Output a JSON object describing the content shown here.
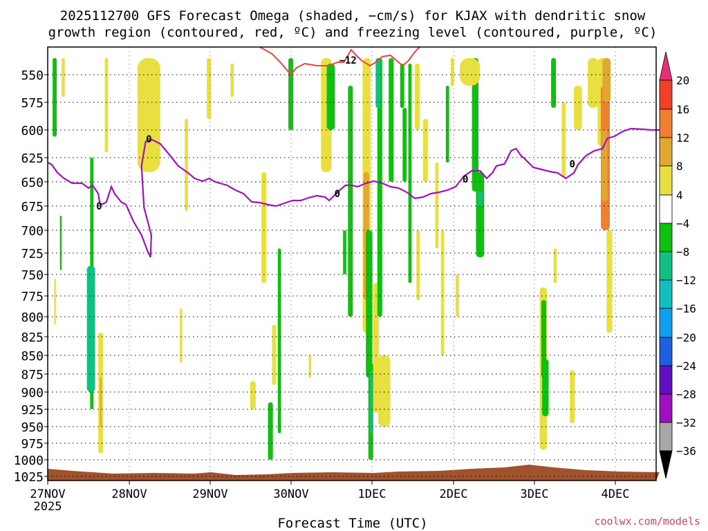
{
  "chart_data": {
    "type": "heatmap",
    "title_line1": "2025112700 GFS Forecast Omega (shaded, −cm/s) for KJAX with dendritic snow",
    "title_line2": "growth region (contoured, red, ºC) and freezing level (contoured, purple, ºC)",
    "xlabel": "Forecast Time (UTC)",
    "ylabel": "",
    "x_ticks": [
      "27NOV",
      "28NOV",
      "29NOV",
      "30NOV",
      "1DEC",
      "2DEC",
      "3DEC",
      "4DEC"
    ],
    "x_year": "2025",
    "y_ticks": [
      "550",
      "575",
      "600",
      "625",
      "650",
      "675",
      "700",
      "725",
      "750",
      "775",
      "800",
      "825",
      "850",
      "875",
      "900",
      "925",
      "950",
      "975",
      "1000",
      "1025"
    ],
    "colorbar_levels": [
      "20",
      "16",
      "12",
      "8",
      "4",
      "−4",
      "−8",
      "−12",
      "−16",
      "−20",
      "−24",
      "−28",
      "−32",
      "−36"
    ],
    "colorbar_colors": [
      "#e8307a",
      "#f0402a",
      "#f08030",
      "#e0a830",
      "#e8e040",
      "#ffffff",
      "#10c010",
      "#10c080",
      "#10c0c0",
      "#10a0f0",
      "#2060e0",
      "#6010c0",
      "#a010c0",
      "#a8a8a8",
      "#000000"
    ],
    "contour_labels": {
      "freezing_level": "0",
      "dgz": "−12"
    },
    "contour_colors": {
      "freezing_level": "#a010c0",
      "dgz": "#f04040",
      "terrain": "#a0522d"
    },
    "grid": true
  },
  "footer": {
    "credit": "coolwx.com/models"
  }
}
